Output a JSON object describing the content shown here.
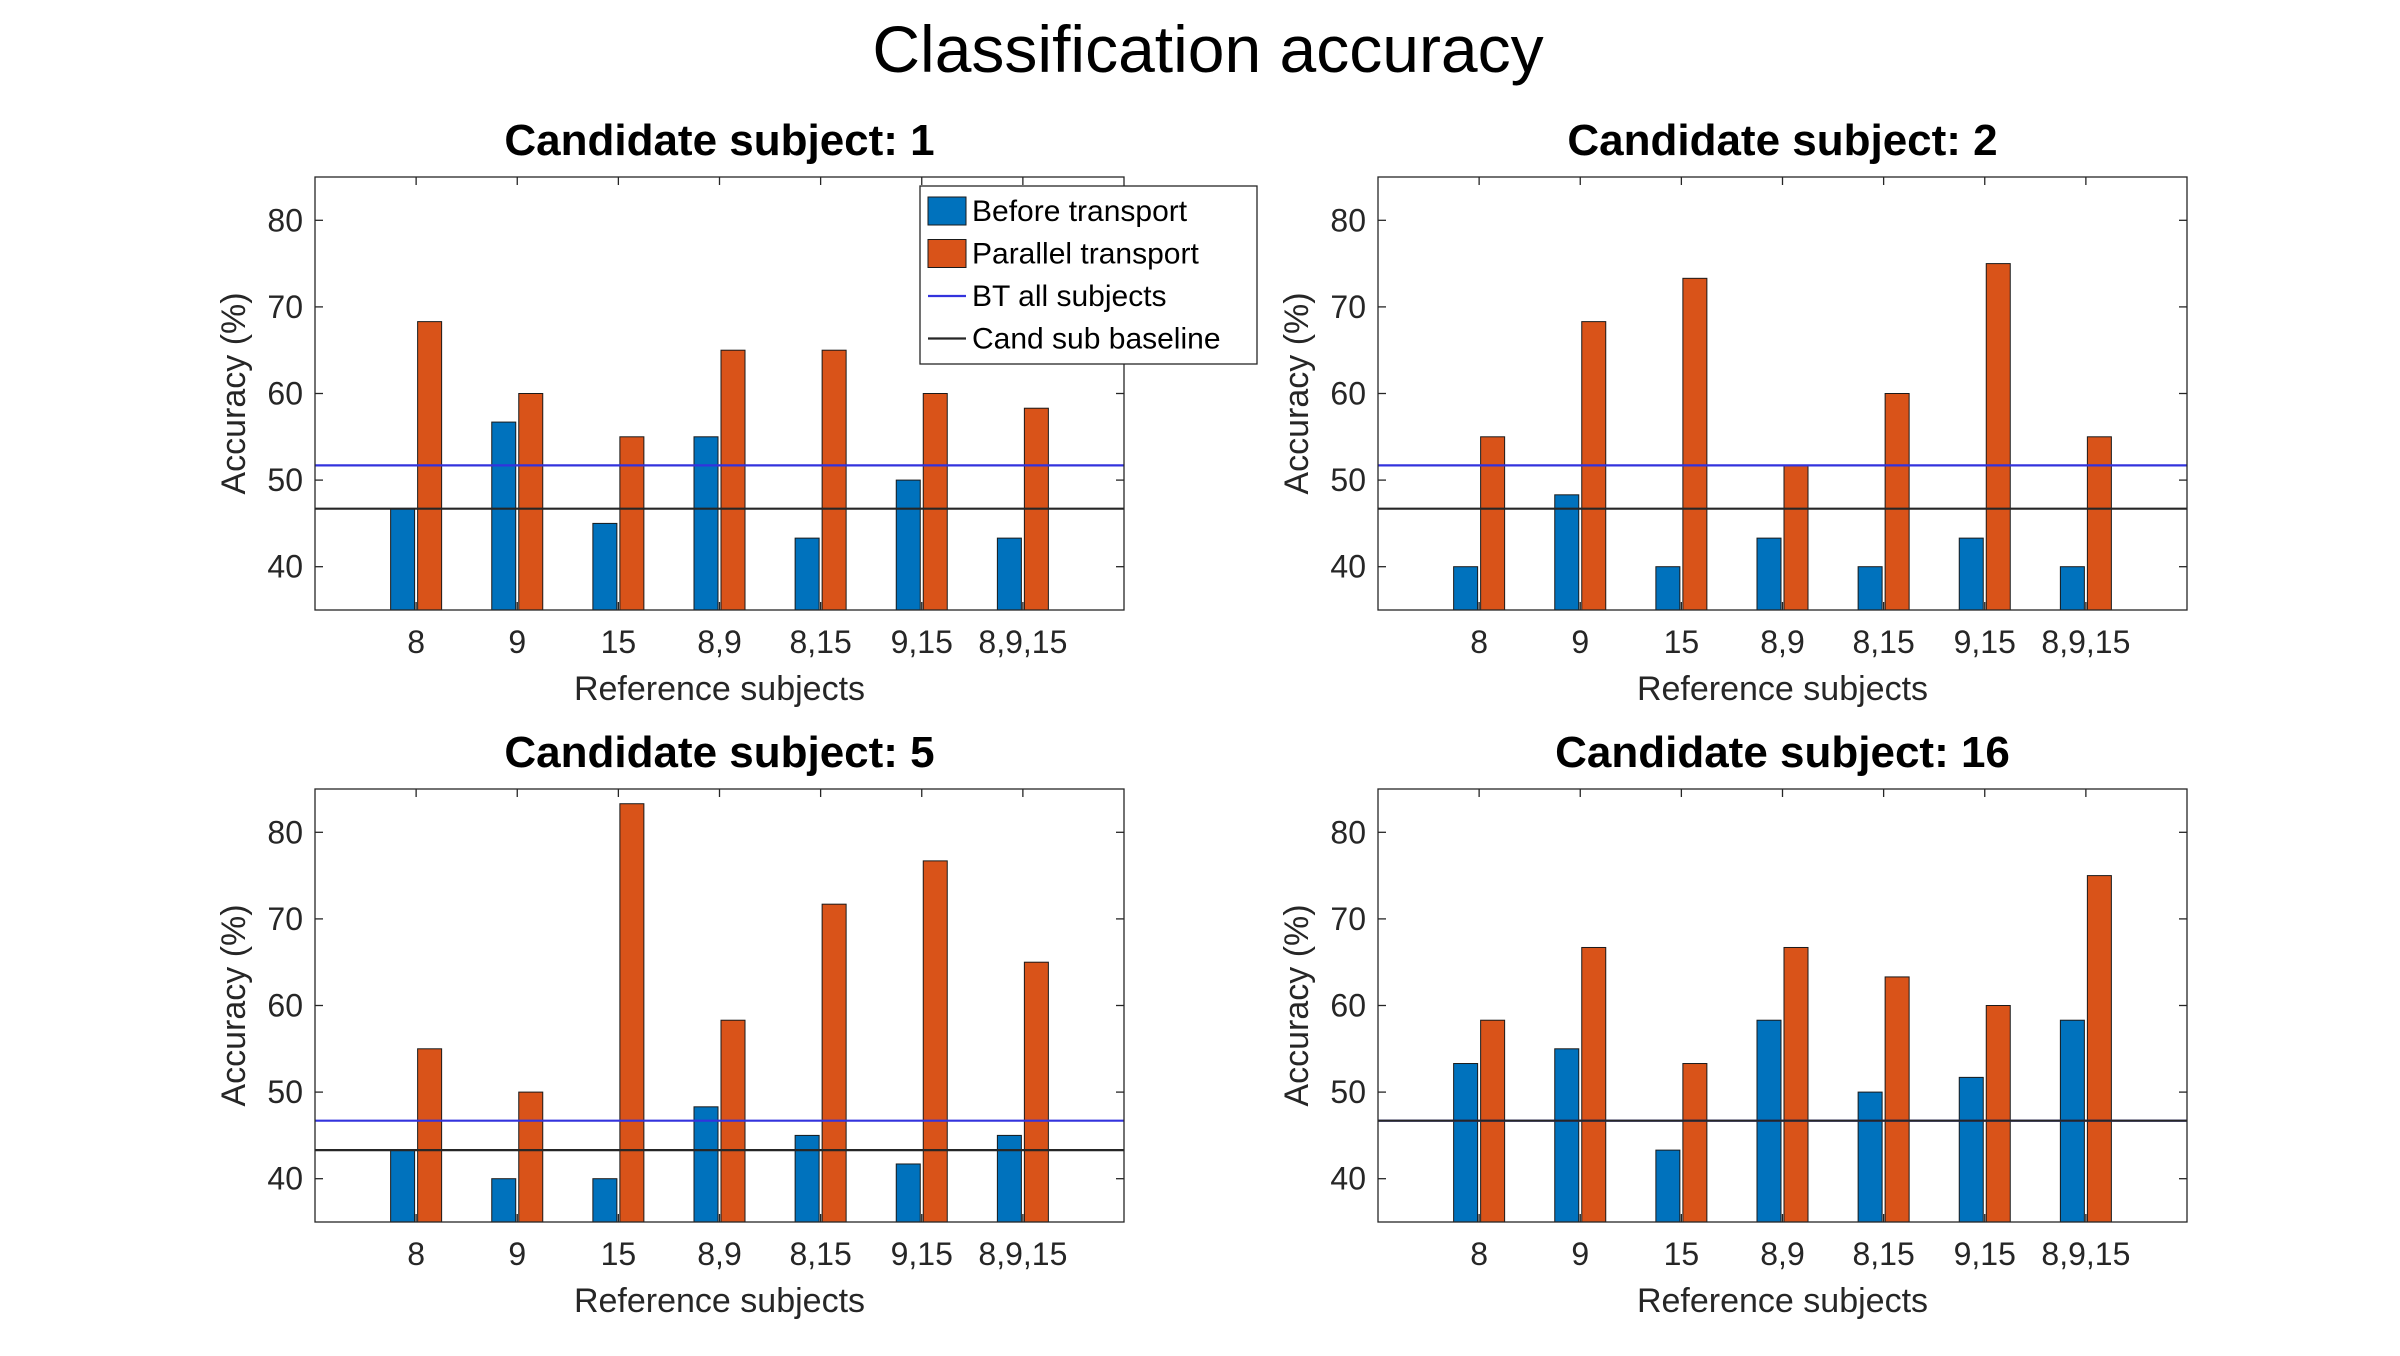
{
  "figure_title": "Classification accuracy",
  "legend": {
    "before": "Before transport",
    "parallel": "Parallel transport",
    "bt_all": "BT all subjects",
    "cand_baseline": "Cand sub baseline"
  },
  "colors": {
    "before": "#0072BD",
    "parallel": "#D95319",
    "bt_all": "#3333DD",
    "cand_baseline": "#262626"
  },
  "chart_data": [
    {
      "type": "bar",
      "title": "Candidate subject: 1",
      "xlabel": "Reference subjects",
      "ylabel": "Accuracy (%)",
      "categories": [
        "8",
        "9",
        "15",
        "8,9",
        "8,15",
        "9,15",
        "8,9,15"
      ],
      "series": [
        {
          "name": "Before transport",
          "values": [
            46.7,
            56.7,
            45.0,
            55.0,
            43.3,
            50.0,
            43.3
          ]
        },
        {
          "name": "Parallel transport",
          "values": [
            68.3,
            60.0,
            55.0,
            65.0,
            65.0,
            60.0,
            58.3
          ]
        }
      ],
      "reference_lines": [
        {
          "name": "BT all subjects",
          "value": 51.7
        },
        {
          "name": "Cand sub baseline",
          "value": 46.7
        }
      ],
      "ylim": [
        35,
        85
      ],
      "yticks": [
        40,
        50,
        60,
        70,
        80
      ],
      "legend_position": "top-right"
    },
    {
      "type": "bar",
      "title": "Candidate subject: 2",
      "xlabel": "Reference subjects",
      "ylabel": "Accuracy (%)",
      "categories": [
        "8",
        "9",
        "15",
        "8,9",
        "8,15",
        "9,15",
        "8,9,15"
      ],
      "series": [
        {
          "name": "Before transport",
          "values": [
            40.0,
            48.3,
            40.0,
            43.3,
            40.0,
            43.3,
            40.0
          ]
        },
        {
          "name": "Parallel transport",
          "values": [
            55.0,
            68.3,
            73.3,
            51.7,
            60.0,
            75.0,
            55.0
          ]
        }
      ],
      "reference_lines": [
        {
          "name": "BT all subjects",
          "value": 51.7
        },
        {
          "name": "Cand sub baseline",
          "value": 46.7
        }
      ],
      "ylim": [
        35,
        85
      ],
      "yticks": [
        40,
        50,
        60,
        70,
        80
      ]
    },
    {
      "type": "bar",
      "title": "Candidate subject: 5",
      "xlabel": "Reference subjects",
      "ylabel": "Accuracy (%)",
      "categories": [
        "8",
        "9",
        "15",
        "8,9",
        "8,15",
        "9,15",
        "8,9,15"
      ],
      "series": [
        {
          "name": "Before transport",
          "values": [
            43.3,
            40.0,
            40.0,
            48.3,
            45.0,
            41.7,
            45.0
          ]
        },
        {
          "name": "Parallel transport",
          "values": [
            55.0,
            50.0,
            83.3,
            58.3,
            71.7,
            76.7,
            65.0
          ]
        }
      ],
      "reference_lines": [
        {
          "name": "BT all subjects",
          "value": 46.7
        },
        {
          "name": "Cand sub baseline",
          "value": 43.3
        }
      ],
      "ylim": [
        35,
        85
      ],
      "yticks": [
        40,
        50,
        60,
        70,
        80
      ]
    },
    {
      "type": "bar",
      "title": "Candidate subject: 16",
      "xlabel": "Reference subjects",
      "ylabel": "Accuracy (%)",
      "categories": [
        "8",
        "9",
        "15",
        "8,9",
        "8,15",
        "9,15",
        "8,9,15"
      ],
      "series": [
        {
          "name": "Before transport",
          "values": [
            53.3,
            55.0,
            43.3,
            58.3,
            50.0,
            51.7,
            58.3
          ]
        },
        {
          "name": "Parallel transport",
          "values": [
            58.3,
            66.7,
            53.3,
            66.7,
            63.3,
            60.0,
            75.0
          ]
        }
      ],
      "reference_lines": [
        {
          "name": "BT all subjects",
          "value": 46.7
        },
        {
          "name": "Cand sub baseline",
          "value": 46.7
        }
      ],
      "ylim": [
        35,
        85
      ],
      "yticks": [
        40,
        50,
        60,
        70,
        80
      ]
    }
  ]
}
